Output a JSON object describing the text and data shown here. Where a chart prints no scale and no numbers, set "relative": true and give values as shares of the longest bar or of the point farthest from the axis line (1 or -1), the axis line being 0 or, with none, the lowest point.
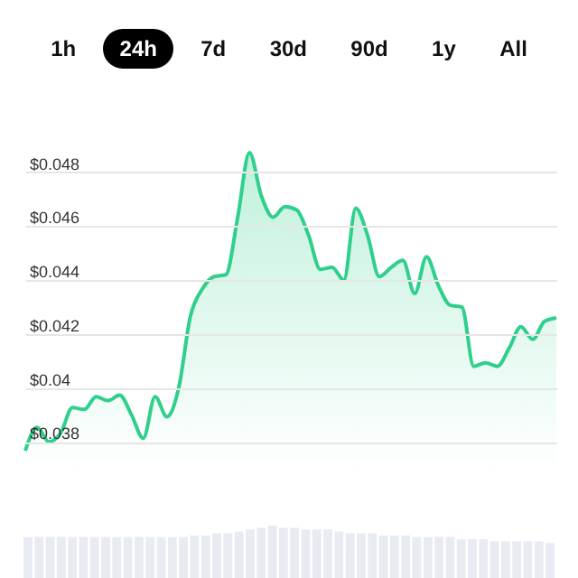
{
  "chart_data": [
    {
      "type": "area",
      "annotations": [
        "1h",
        "24h",
        "7d",
        "30d",
        "90d",
        "1y",
        "All"
      ],
      "categories": [
        null,
        null,
        null,
        null,
        null,
        null,
        null,
        null,
        null,
        null,
        null,
        null,
        null,
        null,
        null,
        null,
        null,
        null,
        null,
        null,
        null,
        null,
        null,
        null,
        null,
        null,
        null,
        null,
        null,
        null,
        null,
        null,
        null,
        null,
        null,
        null,
        null,
        null,
        null,
        null,
        null,
        null,
        null,
        null,
        null,
        null
      ],
      "series": [
        {
          "color": "#2fcf8c",
          "values": [
            0.03767,
            0.03853,
            0.038,
            0.03833,
            0.03927,
            0.0392,
            0.03967,
            0.03953,
            0.03973,
            0.039,
            0.03813,
            0.03967,
            0.03893,
            0.04,
            0.04267,
            0.04367,
            0.04413,
            0.0442,
            0.04633,
            0.04873,
            0.04713,
            0.04633,
            0.04673,
            0.0466,
            0.04567,
            0.0444,
            0.04447,
            0.044,
            0.04667,
            0.04567,
            0.04413,
            0.04447,
            0.04473,
            0.0435,
            0.04487,
            0.0438,
            0.04307,
            0.043,
            0.0408,
            0.04093,
            0.0408,
            0.04147,
            0.04227,
            0.0418,
            0.04247,
            0.0426
          ]
        }
      ],
      "ylim": [
        0.0369,
        0.0493
      ],
      "yticks": [
        {
          "value": 0.038,
          "label": "$0.038"
        },
        {
          "value": 0.04,
          "label": "$0.04"
        },
        {
          "value": 0.042,
          "label": "$0.042"
        },
        {
          "value": 0.044,
          "label": "$0.044"
        },
        {
          "value": 0.046,
          "label": "$0.046"
        },
        {
          "value": 0.048,
          "label": "$0.048"
        }
      ],
      "grid": "y",
      "tick_labels": "y"
    },
    {
      "type": "bar",
      "relative": true,
      "tick_labels": false,
      "categories": [
        null,
        null,
        null,
        null,
        null,
        null,
        null,
        null,
        null,
        null,
        null,
        null,
        null,
        null,
        null,
        null,
        null,
        null,
        null,
        null,
        null,
        null,
        null,
        null,
        null,
        null,
        null,
        null,
        null,
        null,
        null,
        null,
        null,
        null,
        null,
        null,
        null,
        null,
        null,
        null,
        null,
        null,
        null,
        null,
        null,
        null,
        null,
        null
      ],
      "series": [
        {
          "color": "#e8ebf2",
          "values": [
            0.79,
            0.79,
            0.79,
            0.79,
            0.79,
            0.79,
            0.79,
            0.79,
            0.79,
            0.79,
            0.79,
            0.79,
            0.79,
            0.79,
            0.79,
            0.82,
            0.82,
            0.86,
            0.86,
            0.89,
            0.93,
            0.96,
            1,
            0.96,
            0.96,
            0.93,
            0.93,
            0.93,
            0.89,
            0.86,
            0.86,
            0.86,
            0.82,
            0.82,
            0.82,
            0.79,
            0.79,
            0.79,
            0.79,
            0.75,
            0.75,
            0.75,
            0.71,
            0.71,
            0.71,
            0.71,
            0.71,
            0.68
          ]
        }
      ]
    }
  ]
}
